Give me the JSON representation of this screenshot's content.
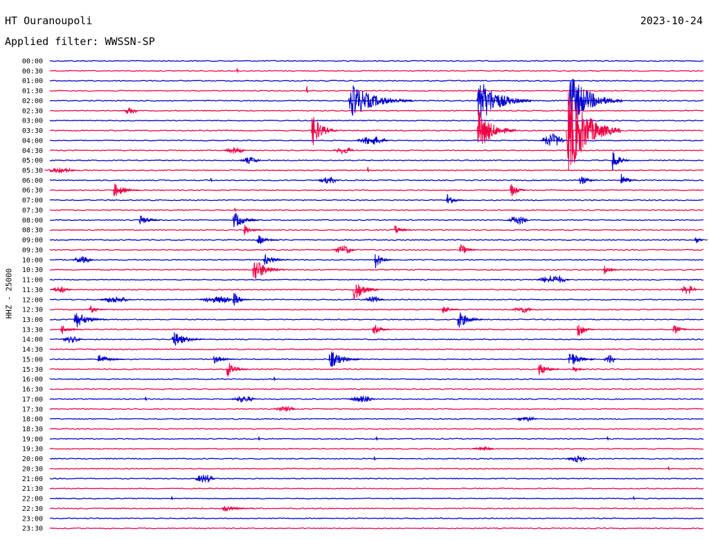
{
  "header": {
    "station": "HT Ouranoupoli",
    "date": "2023-10-24",
    "filter_label": "Applied filter: WWSSN-SP"
  },
  "chart_data": {
    "type": "helicorder",
    "title": "HT Ouranoupoli",
    "subtitle": "Applied filter: WWSSN-SP",
    "date": "2023-10-24",
    "ylabel": "HHZ - 25000",
    "row_minutes": 30,
    "grid": false,
    "colors": {
      "even_hour": "#0000cc",
      "half_hour": "#ee0044"
    },
    "rows": [
      "00:00",
      "00:30",
      "01:00",
      "01:30",
      "02:00",
      "02:30",
      "03:00",
      "03:30",
      "04:00",
      "04:30",
      "05:00",
      "05:30",
      "06:00",
      "06:30",
      "07:00",
      "07:30",
      "08:00",
      "08:30",
      "09:00",
      "09:30",
      "10:00",
      "10:30",
      "11:00",
      "11:30",
      "12:00",
      "12:30",
      "13:00",
      "13:30",
      "14:00",
      "14:30",
      "15:00",
      "15:30",
      "16:00",
      "16:30",
      "17:00",
      "17:30",
      "18:00",
      "18:30",
      "19:00",
      "19:30",
      "20:00",
      "20:30",
      "21:00",
      "21:30",
      "22:00",
      "22:30",
      "23:00",
      "23:30"
    ],
    "events": [
      {
        "row": 1,
        "min": 8.6,
        "amp": 1.2,
        "type": "spike"
      },
      {
        "row": 3,
        "min": 11.8,
        "amp": 2.0,
        "type": "spike"
      },
      {
        "row": 4,
        "min": 13.7,
        "amp": 9.0,
        "type": "quake",
        "dur": 3
      },
      {
        "row": 4,
        "min": 19.6,
        "amp": 12.0,
        "type": "quake",
        "dur": 2.5
      },
      {
        "row": 4,
        "min": 23.8,
        "amp": 14.0,
        "type": "quake",
        "dur": 2.5
      },
      {
        "row": 5,
        "min": 3.7,
        "amp": 1.5,
        "type": "burst",
        "dur": 0.8
      },
      {
        "row": 7,
        "min": 12.0,
        "amp": 9.0,
        "type": "quake",
        "dur": 1.2
      },
      {
        "row": 7,
        "min": 19.6,
        "amp": 11.0,
        "type": "quake",
        "dur": 1.8
      },
      {
        "row": 7,
        "min": 23.7,
        "amp": 24.0,
        "type": "quake",
        "dur": 2.5
      },
      {
        "row": 7,
        "min": 25.2,
        "amp": 2.0,
        "type": "burst",
        "dur": 0.6
      },
      {
        "row": 8,
        "min": 14.8,
        "amp": 2.0,
        "type": "burst",
        "dur": 1.5
      },
      {
        "row": 8,
        "min": 23.1,
        "amp": 3.0,
        "type": "burst",
        "dur": 1.2
      },
      {
        "row": 9,
        "min": 8.5,
        "amp": 1.5,
        "type": "burst",
        "dur": 1.0
      },
      {
        "row": 9,
        "min": 13.5,
        "amp": 1.5,
        "type": "burst",
        "dur": 1.0
      },
      {
        "row": 10,
        "min": 9.2,
        "amp": 1.5,
        "type": "burst",
        "dur": 1.0
      },
      {
        "row": 10,
        "min": 25.8,
        "amp": 6.0,
        "type": "quake",
        "dur": 0.8
      },
      {
        "row": 11,
        "min": 0.5,
        "amp": 1.2,
        "type": "burst",
        "dur": 1.5
      },
      {
        "row": 11,
        "min": 14.6,
        "amp": 1.5,
        "type": "spike"
      },
      {
        "row": 12,
        "min": 7.4,
        "amp": 1.0,
        "type": "spike"
      },
      {
        "row": 12,
        "min": 12.8,
        "amp": 1.5,
        "type": "burst",
        "dur": 1.0
      },
      {
        "row": 12,
        "min": 24.3,
        "amp": 4.0,
        "type": "quake",
        "dur": 0.8
      },
      {
        "row": 12,
        "min": 26.2,
        "amp": 3.5,
        "type": "quake",
        "dur": 0.8
      },
      {
        "row": 13,
        "min": 2.9,
        "amp": 4.0,
        "type": "quake",
        "dur": 1.2
      },
      {
        "row": 13,
        "min": 21.1,
        "amp": 4.5,
        "type": "quake",
        "dur": 0.8
      },
      {
        "row": 14,
        "min": 18.2,
        "amp": 4.0,
        "type": "quake",
        "dur": 0.8
      },
      {
        "row": 15,
        "min": 8.5,
        "amp": 1.0,
        "type": "spike"
      },
      {
        "row": 16,
        "min": 4.1,
        "amp": 3.0,
        "type": "quake",
        "dur": 1.0
      },
      {
        "row": 16,
        "min": 8.4,
        "amp": 5.0,
        "type": "quake",
        "dur": 1.2
      },
      {
        "row": 16,
        "min": 21.5,
        "amp": 2.0,
        "type": "burst",
        "dur": 1.0
      },
      {
        "row": 17,
        "min": 8.9,
        "amp": 3.0,
        "type": "quake",
        "dur": 0.8
      },
      {
        "row": 17,
        "min": 15.8,
        "amp": 3.0,
        "type": "quake",
        "dur": 0.8
      },
      {
        "row": 18,
        "min": 9.5,
        "amp": 3.0,
        "type": "quake",
        "dur": 1.0
      },
      {
        "row": 18,
        "min": 29.6,
        "amp": 2.5,
        "type": "quake",
        "dur": 0.6
      },
      {
        "row": 19,
        "min": 13.5,
        "amp": 2.0,
        "type": "burst",
        "dur": 1.0
      },
      {
        "row": 19,
        "min": 18.8,
        "amp": 4.0,
        "type": "quake",
        "dur": 0.8
      },
      {
        "row": 20,
        "min": 1.5,
        "amp": 1.5,
        "type": "burst",
        "dur": 1.0
      },
      {
        "row": 20,
        "min": 9.8,
        "amp": 3.0,
        "type": "quake",
        "dur": 1.2
      },
      {
        "row": 20,
        "min": 14.9,
        "amp": 5.0,
        "type": "quake",
        "dur": 0.8
      },
      {
        "row": 21,
        "min": 9.3,
        "amp": 7.0,
        "type": "quake",
        "dur": 1.5
      },
      {
        "row": 21,
        "min": 25.4,
        "amp": 3.0,
        "type": "quake",
        "dur": 0.8
      },
      {
        "row": 22,
        "min": 23.1,
        "amp": 2.0,
        "type": "burst",
        "dur": 1.5
      },
      {
        "row": 23,
        "min": 0.5,
        "amp": 1.5,
        "type": "burst",
        "dur": 1.0
      },
      {
        "row": 23,
        "min": 13.9,
        "amp": 7.0,
        "type": "quake",
        "dur": 1.2
      },
      {
        "row": 23,
        "min": 29.3,
        "amp": 2.0,
        "type": "burst",
        "dur": 0.8
      },
      {
        "row": 24,
        "min": 3.0,
        "amp": 1.5,
        "type": "burst",
        "dur": 1.5
      },
      {
        "row": 24,
        "min": 7.6,
        "amp": 1.5,
        "type": "burst",
        "dur": 1.5
      },
      {
        "row": 24,
        "min": 7.9,
        "amp": 1.5,
        "type": "burst",
        "dur": 1.0
      },
      {
        "row": 24,
        "min": 8.4,
        "amp": 4.0,
        "type": "quake",
        "dur": 0.8
      },
      {
        "row": 24,
        "min": 14.9,
        "amp": 1.5,
        "type": "burst",
        "dur": 1.0
      },
      {
        "row": 25,
        "min": 1.8,
        "amp": 2.5,
        "type": "quake",
        "dur": 0.8
      },
      {
        "row": 25,
        "min": 18.0,
        "amp": 2.5,
        "type": "quake",
        "dur": 0.8
      },
      {
        "row": 25,
        "min": 21.7,
        "amp": 1.5,
        "type": "burst",
        "dur": 1.0
      },
      {
        "row": 26,
        "min": 1.1,
        "amp": 5.0,
        "type": "quake",
        "dur": 1.5
      },
      {
        "row": 26,
        "min": 18.7,
        "amp": 5.0,
        "type": "quake",
        "dur": 1.2
      },
      {
        "row": 27,
        "min": 0.5,
        "amp": 2.5,
        "type": "quake",
        "dur": 1.0
      },
      {
        "row": 27,
        "min": 14.8,
        "amp": 4.0,
        "type": "quake",
        "dur": 0.8
      },
      {
        "row": 27,
        "min": 24.2,
        "amp": 4.5,
        "type": "quake",
        "dur": 0.8
      },
      {
        "row": 27,
        "min": 28.6,
        "amp": 3.0,
        "type": "quake",
        "dur": 0.8
      },
      {
        "row": 28,
        "min": 1.0,
        "amp": 1.5,
        "type": "burst",
        "dur": 1.0
      },
      {
        "row": 28,
        "min": 5.6,
        "amp": 4.5,
        "type": "quake",
        "dur": 1.5
      },
      {
        "row": 30,
        "min": 2.2,
        "amp": 3.0,
        "type": "quake",
        "dur": 1.2
      },
      {
        "row": 30,
        "min": 7.5,
        "amp": 2.5,
        "type": "quake",
        "dur": 1.0
      },
      {
        "row": 30,
        "min": 12.8,
        "amp": 5.0,
        "type": "quake",
        "dur": 1.5
      },
      {
        "row": 30,
        "min": 23.8,
        "amp": 5.0,
        "type": "quake",
        "dur": 1.2
      },
      {
        "row": 30,
        "min": 25.7,
        "amp": 2.0,
        "type": "burst",
        "dur": 0.6
      },
      {
        "row": 31,
        "min": 8.1,
        "amp": 5.0,
        "type": "quake",
        "dur": 1.0
      },
      {
        "row": 31,
        "min": 22.4,
        "amp": 4.0,
        "type": "quake",
        "dur": 1.0
      },
      {
        "row": 31,
        "min": 24.0,
        "amp": 2.0,
        "type": "quake",
        "dur": 0.6
      },
      {
        "row": 32,
        "min": 10.3,
        "amp": 1.0,
        "type": "spike"
      },
      {
        "row": 34,
        "min": 4.4,
        "amp": 1.0,
        "type": "spike"
      },
      {
        "row": 34,
        "min": 8.9,
        "amp": 1.5,
        "type": "burst",
        "dur": 1.2
      },
      {
        "row": 34,
        "min": 14.3,
        "amp": 1.5,
        "type": "burst",
        "dur": 1.2
      },
      {
        "row": 35,
        "min": 10.8,
        "amp": 1.2,
        "type": "burst",
        "dur": 1.0
      },
      {
        "row": 36,
        "min": 21.9,
        "amp": 1.2,
        "type": "burst",
        "dur": 1.0
      },
      {
        "row": 38,
        "min": 9.6,
        "amp": 1.0,
        "type": "spike"
      },
      {
        "row": 38,
        "min": 15.0,
        "amp": 1.0,
        "type": "spike"
      },
      {
        "row": 38,
        "min": 25.6,
        "amp": 1.0,
        "type": "spike"
      },
      {
        "row": 39,
        "min": 19.9,
        "amp": 1.0,
        "type": "burst",
        "dur": 1.0
      },
      {
        "row": 40,
        "min": 14.9,
        "amp": 1.0,
        "type": "spike"
      },
      {
        "row": 40,
        "min": 24.2,
        "amp": 1.5,
        "type": "burst",
        "dur": 1.0
      },
      {
        "row": 41,
        "min": 28.4,
        "amp": 1.0,
        "type": "spike"
      },
      {
        "row": 42,
        "min": 7.1,
        "amp": 2.0,
        "type": "burst",
        "dur": 1.0
      },
      {
        "row": 44,
        "min": 5.6,
        "amp": 0.8,
        "type": "spike"
      },
      {
        "row": 44,
        "min": 26.8,
        "amp": 0.8,
        "type": "spike"
      },
      {
        "row": 45,
        "min": 7.9,
        "amp": 2.0,
        "type": "quake",
        "dur": 1.5
      }
    ]
  }
}
